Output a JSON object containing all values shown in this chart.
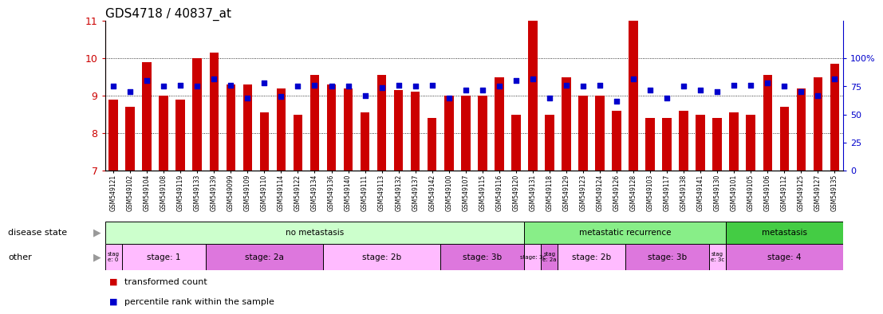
{
  "title": "GDS4718 / 40837_at",
  "samples": [
    "GSM549121",
    "GSM549102",
    "GSM549104",
    "GSM549108",
    "GSM549119",
    "GSM549133",
    "GSM549139",
    "GSM549099",
    "GSM549109",
    "GSM549110",
    "GSM549114",
    "GSM549122",
    "GSM549134",
    "GSM549136",
    "GSM549140",
    "GSM549111",
    "GSM549113",
    "GSM549132",
    "GSM549137",
    "GSM549142",
    "GSM549100",
    "GSM549107",
    "GSM549115",
    "GSM549116",
    "GSM549120",
    "GSM549131",
    "GSM549118",
    "GSM549129",
    "GSM549123",
    "GSM549124",
    "GSM549126",
    "GSM549128",
    "GSM549103",
    "GSM549117",
    "GSM549138",
    "GSM549141",
    "GSM549130",
    "GSM549101",
    "GSM549105",
    "GSM549106",
    "GSM549112",
    "GSM549125",
    "GSM549127",
    "GSM549135"
  ],
  "bar_values": [
    8.9,
    8.7,
    9.9,
    9.0,
    8.9,
    10.0,
    10.15,
    9.3,
    9.3,
    8.55,
    9.2,
    8.5,
    9.55,
    9.3,
    9.2,
    8.55,
    9.55,
    9.15,
    9.1,
    8.4,
    9.0,
    9.0,
    9.0,
    9.5,
    8.5,
    11.0,
    8.5,
    9.5,
    9.0,
    9.0,
    8.6,
    11.0,
    8.4,
    8.4,
    8.6,
    8.5,
    8.4,
    8.55,
    8.5,
    9.55,
    8.7,
    9.2,
    9.5,
    9.85
  ],
  "dot_values_pct": [
    75,
    70,
    80,
    75,
    76,
    75,
    82,
    76,
    65,
    78,
    66,
    75,
    76,
    75,
    75,
    67,
    74,
    76,
    75,
    76,
    65,
    72,
    72,
    75,
    80,
    82,
    65,
    76,
    75,
    76,
    62,
    82,
    72,
    65,
    75,
    72,
    70,
    76,
    76,
    78,
    75,
    70,
    67,
    82
  ],
  "ylim_left": [
    7,
    11
  ],
  "yticks_left": [
    7,
    8,
    9,
    10,
    11
  ],
  "ylim_right": [
    0,
    133.33
  ],
  "yticks_right": [
    0,
    25,
    50,
    75,
    100
  ],
  "bar_color": "#cc0000",
  "dot_color": "#0000cc",
  "right_ycolor": "#0000cc",
  "disease_state_groups": [
    {
      "label": "no metastasis",
      "start": 0,
      "end": 25,
      "color": "#ccffcc"
    },
    {
      "label": "metastatic recurrence",
      "start": 25,
      "end": 37,
      "color": "#88ee88"
    },
    {
      "label": "metastasis",
      "start": 37,
      "end": 44,
      "color": "#44cc44"
    }
  ],
  "stage_groups": [
    {
      "label": "stag\ne: 0",
      "start": 0,
      "end": 1,
      "color": "#ffbbff"
    },
    {
      "label": "stage: 1",
      "start": 1,
      "end": 6,
      "color": "#ffbbff"
    },
    {
      "label": "stage: 2a",
      "start": 6,
      "end": 13,
      "color": "#dd77dd"
    },
    {
      "label": "stage: 2b",
      "start": 13,
      "end": 20,
      "color": "#ffbbff"
    },
    {
      "label": "stage: 3b",
      "start": 20,
      "end": 25,
      "color": "#dd77dd"
    },
    {
      "label": "stage: 3c",
      "start": 25,
      "end": 26,
      "color": "#ffbbff"
    },
    {
      "label": "stag\ne: 2a",
      "start": 26,
      "end": 27,
      "color": "#dd77dd"
    },
    {
      "label": "stage: 2b",
      "start": 27,
      "end": 31,
      "color": "#ffbbff"
    },
    {
      "label": "stage: 3b",
      "start": 31,
      "end": 36,
      "color": "#dd77dd"
    },
    {
      "label": "stag\ne: 3c",
      "start": 36,
      "end": 37,
      "color": "#ffbbff"
    },
    {
      "label": "stage: 4",
      "start": 37,
      "end": 44,
      "color": "#dd77dd"
    }
  ],
  "legend_bar_label": "transformed count",
  "legend_dot_label": "percentile rank within the sample",
  "label_disease_state": "disease state",
  "label_other": "other"
}
